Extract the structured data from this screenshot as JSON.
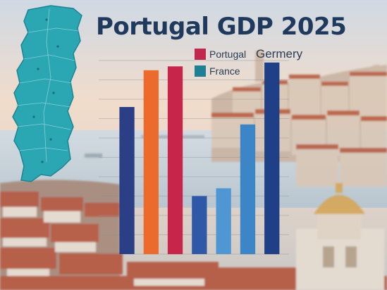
{
  "chart_data": {
    "type": "bar",
    "title": "Portugal GDP 2025",
    "xlabel": "",
    "ylabel": "",
    "ylim": [
      0,
      100
    ],
    "grid": true,
    "legend_placement": "top",
    "legend": [
      {
        "label": "Portugal",
        "color": "#c0284e"
      },
      {
        "label": "France",
        "color": "#1f7f95"
      },
      {
        "label": "Germery",
        "color": ""
      }
    ],
    "bars": [
      {
        "value": 76,
        "color": "#2a3f86"
      },
      {
        "value": 95,
        "color": "#ec6a2c"
      },
      {
        "value": 97,
        "color": "#c8254a"
      },
      {
        "value": 30,
        "color": "#2f58a6"
      },
      {
        "value": 34,
        "color": "#4f97d2"
      },
      {
        "value": 67,
        "color": "#3c86c8"
      },
      {
        "value": 99,
        "color": "#1f3f86"
      }
    ]
  },
  "decor": {
    "icons": [
      "portugal-map-icon",
      "city-skyline-image"
    ],
    "colors": {
      "sky_top": "#cfd9e4",
      "sky_mid": "#f1dccb",
      "river": "#c6d2db",
      "roof": "#b6553d",
      "map": "#2ba6b3",
      "title": "#1f3a5c"
    }
  }
}
